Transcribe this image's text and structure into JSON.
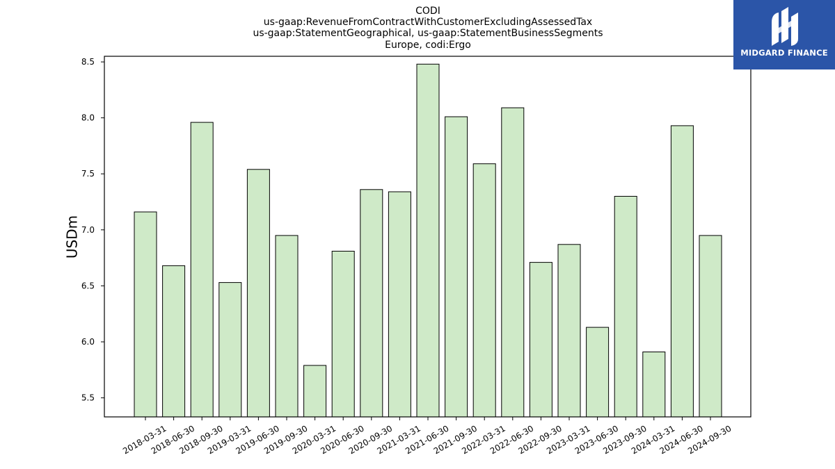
{
  "brand": {
    "name": "MIDGARD FINANCE",
    "bg_color": "#2b55a8",
    "icon": "midgard-logo-icon"
  },
  "chart_data": {
    "type": "bar",
    "title_lines": [
      "CODI",
      "us-gaap:RevenueFromContractWithCustomerExcludingAssessedTax",
      "us-gaap:StatementGeographical, us-gaap:StatementBusinessSegments",
      "Europe, codi:Ergo"
    ],
    "xlabel": "",
    "ylabel": "USDm",
    "ylim": [
      5.33,
      8.55
    ],
    "yticks": [
      5.5,
      6.0,
      6.5,
      7.0,
      7.5,
      8.0,
      8.5
    ],
    "ytick_labels": [
      "5.5",
      "6.0",
      "6.5",
      "7.0",
      "7.5",
      "8.0",
      "8.5"
    ],
    "grid": false,
    "bar_color": "#cfeac8",
    "edge_color": "#000000",
    "categories": [
      "2018-03-31",
      "2018-06-30",
      "2018-09-30",
      "2019-03-31",
      "2019-06-30",
      "2019-09-30",
      "2020-03-31",
      "2020-06-30",
      "2020-09-30",
      "2021-03-31",
      "2021-06-30",
      "2021-09-30",
      "2022-03-31",
      "2022-06-30",
      "2022-09-30",
      "2023-03-31",
      "2023-06-30",
      "2023-09-30",
      "2024-03-31",
      "2024-06-30",
      "2024-09-30"
    ],
    "values": [
      7.16,
      6.68,
      7.96,
      6.53,
      7.54,
      6.95,
      5.79,
      6.81,
      7.36,
      7.34,
      8.48,
      8.01,
      7.59,
      8.09,
      6.71,
      6.87,
      6.13,
      7.3,
      5.91,
      7.93,
      6.95
    ]
  }
}
